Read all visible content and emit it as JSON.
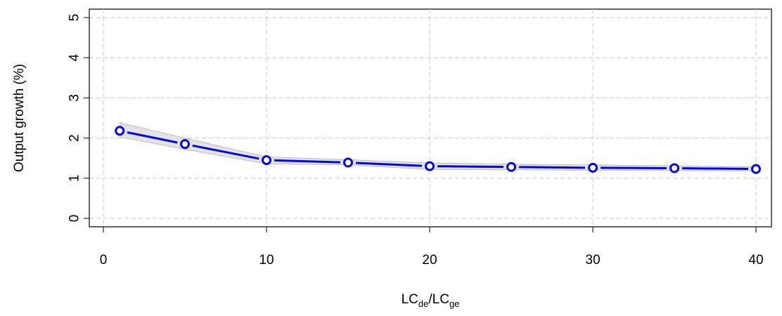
{
  "chart_data": {
    "type": "line",
    "xlabel": {
      "part1_main": "LC",
      "part1_sub": "de",
      "separator": "/",
      "part2_main": "LC",
      "part2_sub": "ge"
    },
    "ylabel": "Output growth (%)",
    "xlim": [
      0,
      41
    ],
    "ylim": [
      0,
      5
    ],
    "x_ticks": [
      0,
      10,
      20,
      30,
      40
    ],
    "y_ticks": [
      0,
      1,
      2,
      3,
      4,
      5
    ],
    "grid": true,
    "series": [
      {
        "x": [
          1,
          5,
          10,
          15,
          20,
          25,
          30,
          35,
          40
        ],
        "y": [
          2.18,
          1.85,
          1.45,
          1.39,
          1.3,
          1.28,
          1.26,
          1.25,
          1.23
        ],
        "lower": [
          2.03,
          1.72,
          1.36,
          1.33,
          1.22,
          1.21,
          1.2,
          1.19,
          1.18
        ],
        "upper": [
          2.38,
          2.0,
          1.53,
          1.46,
          1.38,
          1.35,
          1.33,
          1.31,
          1.28
        ]
      }
    ],
    "colors": {
      "line": "#0000ee",
      "band": "#e3e3e3",
      "band_edge": "#bdbdbd",
      "grid": "#c8c8c8"
    }
  }
}
